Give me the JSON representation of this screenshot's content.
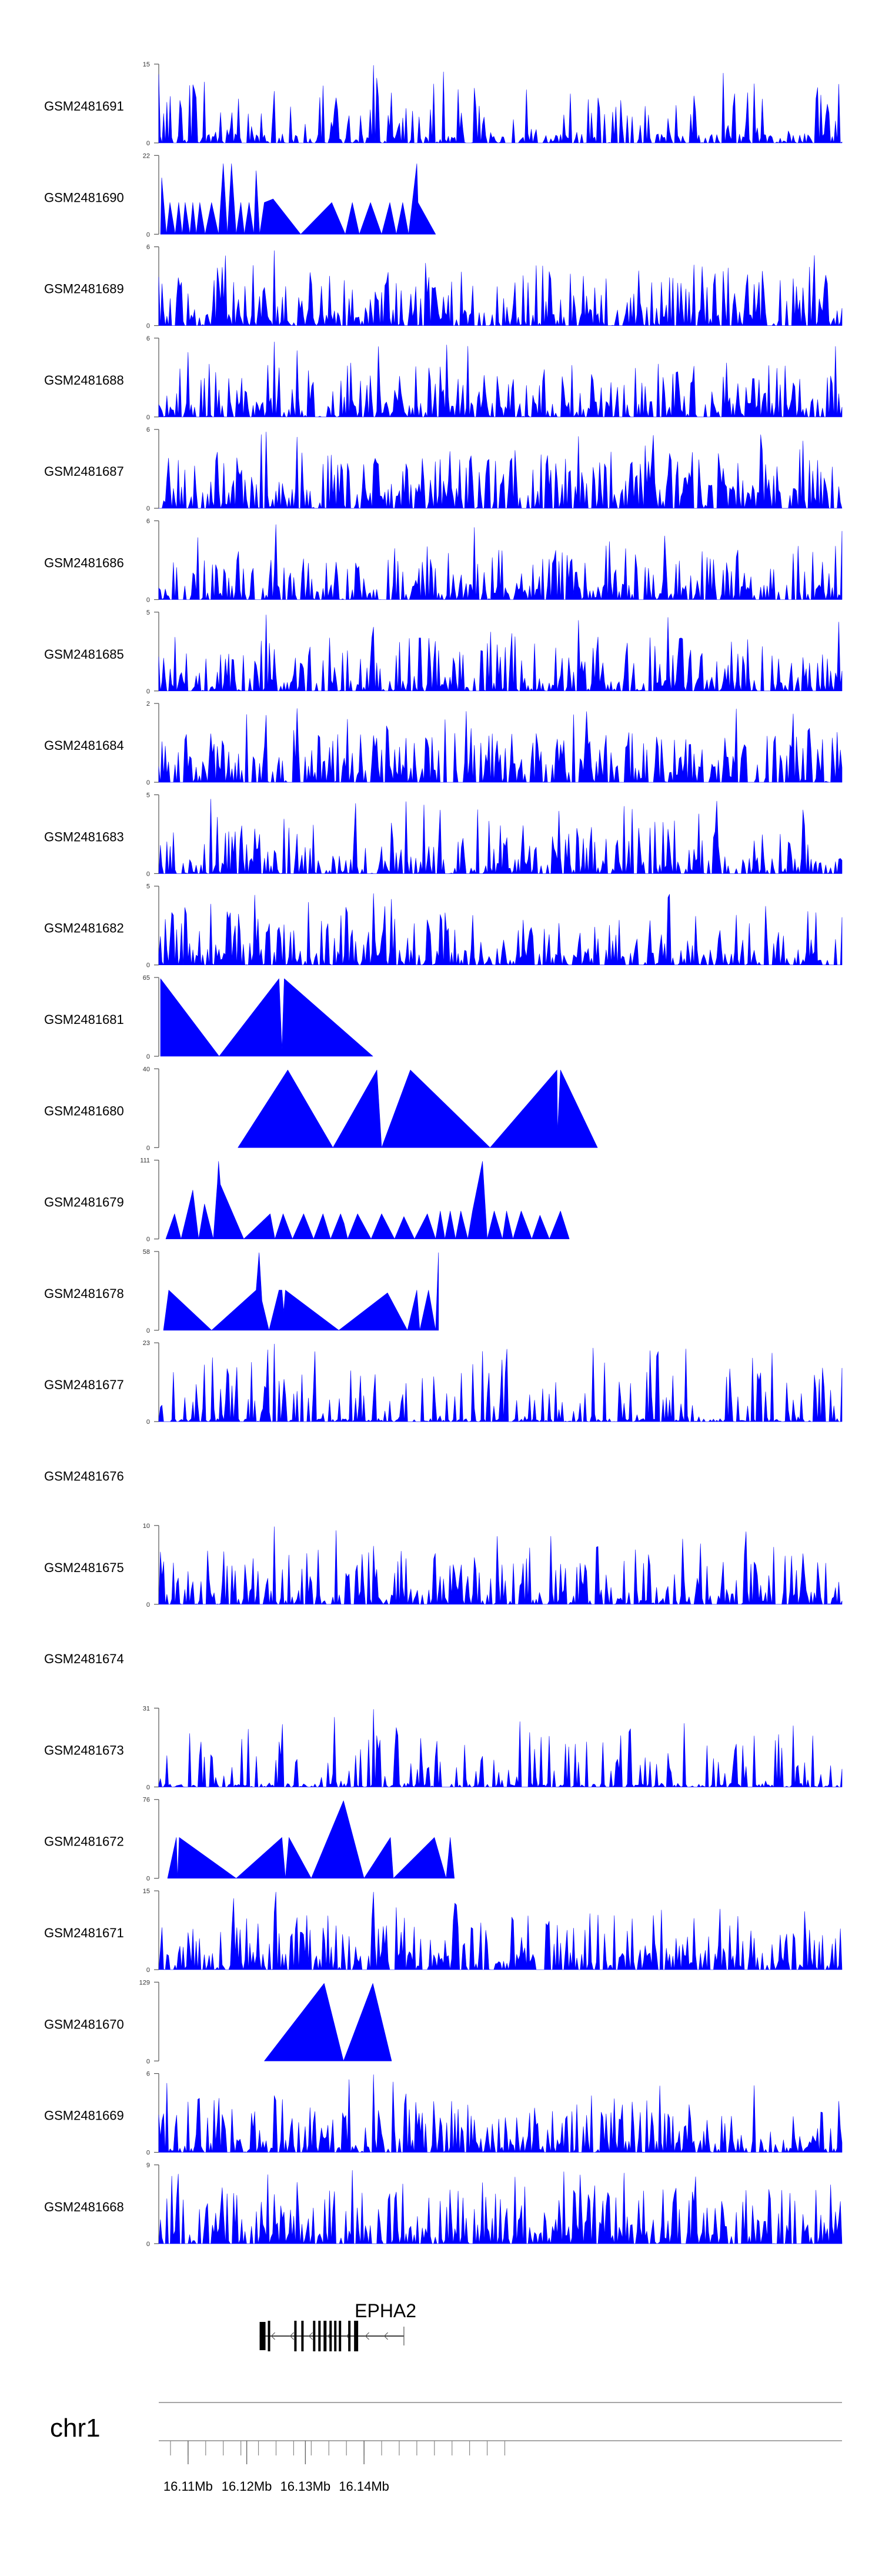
{
  "chart_data": {
    "type": "area",
    "genome": {
      "chromosome": "chr1",
      "start": 16.105,
      "end": 16.2215,
      "unit": "Mb",
      "tick_labels": [
        "16.11Mb",
        "16.12Mb",
        "16.13Mb",
        "16.14Mb"
      ],
      "tick_values": [
        16.11,
        16.12,
        16.13,
        16.14
      ],
      "minor_ticks": [
        16.107,
        16.11,
        16.113,
        16.116,
        16.119,
        16.122,
        16.125,
        16.128,
        16.131,
        16.134,
        16.137,
        16.14,
        16.143,
        16.146,
        16.149,
        16.152,
        16.155,
        16.158,
        16.161,
        16.164
      ]
    },
    "gene": {
      "name": "EPHA2",
      "strand": "-",
      "tx_start": 16.1222,
      "tx_end": 16.1468,
      "exons": [
        [
          16.1222,
          16.1232
        ],
        [
          16.1236,
          16.1239
        ],
        [
          16.1281,
          16.1283
        ],
        [
          16.1293,
          16.1295
        ],
        [
          16.1313,
          16.1316
        ],
        [
          16.1322,
          16.1325
        ],
        [
          16.1331,
          16.1336
        ],
        [
          16.1341,
          16.1343
        ],
        [
          16.1349,
          16.1351
        ],
        [
          16.1357,
          16.1359
        ],
        [
          16.1373,
          16.1375
        ],
        [
          16.1383,
          16.139
        ]
      ]
    },
    "series": [
      {
        "name": "GSM2481691",
        "ymax": 15,
        "ymin": 0,
        "style": "dense",
        "seed": 11,
        "base": 0.12,
        "peaks": [
          [
            16.1415,
            15
          ],
          [
            16.1247,
            10
          ],
          [
            16.1345,
            4
          ]
        ]
      },
      {
        "name": "GSM2481690",
        "ymax": 22,
        "ymin": 0,
        "style": "sparse",
        "seed": 12,
        "points": [
          [
            16.1053,
            0
          ],
          [
            16.1055,
            16
          ],
          [
            16.1063,
            0
          ],
          [
            16.1069,
            9
          ],
          [
            16.1078,
            0
          ],
          [
            16.1084,
            9
          ],
          [
            16.109,
            0
          ],
          [
            16.1095,
            9
          ],
          [
            16.1103,
            0
          ],
          [
            16.1108,
            9
          ],
          [
            16.1114,
            0
          ],
          [
            16.112,
            9
          ],
          [
            16.1129,
            0
          ],
          [
            16.114,
            9
          ],
          [
            16.1152,
            0
          ],
          [
            16.116,
            20
          ],
          [
            16.1167,
            0
          ],
          [
            16.1174,
            20
          ],
          [
            16.1182,
            0
          ],
          [
            16.119,
            9
          ],
          [
            16.1196,
            0
          ],
          [
            16.1204,
            9
          ],
          [
            16.1212,
            0
          ],
          [
            16.1216,
            18
          ],
          [
            16.1222,
            0
          ],
          [
            16.123,
            9
          ],
          [
            16.1245,
            10
          ],
          [
            16.1292,
            0
          ],
          [
            16.1345,
            9
          ],
          [
            16.1368,
            0
          ],
          [
            16.138,
            9
          ],
          [
            16.1392,
            0
          ],
          [
            16.1411,
            9
          ],
          [
            16.143,
            0
          ],
          [
            16.1444,
            9
          ],
          [
            16.1455,
            0
          ],
          [
            16.1466,
            9
          ],
          [
            16.1476,
            0
          ],
          [
            16.149,
            20
          ],
          [
            16.1492,
            9
          ],
          [
            16.1522,
            0
          ]
        ]
      },
      {
        "name": "GSM2481689",
        "ymax": 6,
        "ymin": 0,
        "style": "dense",
        "seed": 13,
        "base": 0.22,
        "peaks": [
          [
            16.1247,
            5.8
          ],
          [
            16.1163,
            5.4
          ]
        ]
      },
      {
        "name": "GSM2481688",
        "ymax": 6,
        "ymin": 0,
        "style": "dense",
        "seed": 14,
        "base": 0.2,
        "peaks": [
          [
            16.1247,
            5.8
          ],
          [
            16.1236,
            4
          ],
          [
            16.1255,
            3.8
          ]
        ]
      },
      {
        "name": "GSM2481687",
        "ymax": 6,
        "ymin": 0,
        "style": "dense",
        "seed": 15,
        "base": 0.3,
        "peaks": [
          [
            16.1233,
            5.9
          ],
          [
            16.1287,
            5.5
          ]
        ]
      },
      {
        "name": "GSM2481686",
        "ymax": 6,
        "ymin": 0,
        "style": "dense",
        "seed": 16,
        "base": 0.2,
        "peaks": [
          [
            16.1251,
            5.8
          ],
          [
            16.1116,
            4.8
          ]
        ]
      },
      {
        "name": "GSM2481685",
        "ymax": 5,
        "ymin": 0,
        "style": "dense",
        "seed": 17,
        "base": 0.18,
        "peaks": [
          [
            16.1233,
            4.9
          ]
        ]
      },
      {
        "name": "GSM2481684",
        "ymax": 2,
        "ymin": 0,
        "style": "dense",
        "seed": 18,
        "base": 0.28,
        "peaks": [
          [
            16.1287,
            1.9
          ]
        ]
      },
      {
        "name": "GSM2481683",
        "ymax": 5,
        "ymin": 0,
        "style": "dense",
        "seed": 19,
        "base": 0.2,
        "peaks": [
          [
            16.1139,
            4.8
          ]
        ]
      },
      {
        "name": "GSM2481682",
        "ymax": 5,
        "ymin": 0,
        "style": "dense",
        "seed": 20,
        "base": 0.2,
        "peaks": [
          [
            16.1415,
            4.6
          ],
          [
            16.1213,
            4.5
          ]
        ]
      },
      {
        "name": "GSM2481681",
        "ymax": 65,
        "ymin": 0,
        "style": "sparse",
        "seed": 21,
        "points": [
          [
            16.1053,
            0
          ],
          [
            16.1053,
            65
          ],
          [
            16.1153,
            0
          ],
          [
            16.1255,
            65
          ],
          [
            16.126,
            6
          ],
          [
            16.1264,
            65
          ],
          [
            16.1415,
            0
          ]
        ]
      },
      {
        "name": "GSM2481680",
        "ymax": 40,
        "ymin": 0,
        "style": "sparse",
        "seed": 22,
        "points": [
          [
            16.1185,
            0
          ],
          [
            16.127,
            40
          ],
          [
            16.1347,
            0
          ],
          [
            16.1422,
            40
          ],
          [
            16.143,
            0
          ],
          [
            16.1479,
            40
          ],
          [
            16.1615,
            0
          ],
          [
            16.1729,
            40
          ],
          [
            16.173,
            8
          ],
          [
            16.1735,
            40
          ],
          [
            16.1798,
            0
          ]
        ]
      },
      {
        "name": "GSM2481679",
        "ymax": 111,
        "ymin": 0,
        "style": "sparse",
        "seed": 23,
        "points": [
          [
            16.1062,
            0
          ],
          [
            16.1077,
            36
          ],
          [
            16.1088,
            0
          ],
          [
            16.1108,
            70
          ],
          [
            16.1118,
            0
          ],
          [
            16.1128,
            50
          ],
          [
            16.1143,
            0
          ],
          [
            16.115,
            80
          ],
          [
            16.1152,
            111
          ],
          [
            16.1155,
            78
          ],
          [
            16.1195,
            0
          ],
          [
            16.124,
            36
          ],
          [
            16.1248,
            0
          ],
          [
            16.1262,
            36
          ],
          [
            16.1278,
            0
          ],
          [
            16.1297,
            36
          ],
          [
            16.1314,
            0
          ],
          [
            16.133,
            36
          ],
          [
            16.1343,
            0
          ],
          [
            16.136,
            36
          ],
          [
            16.1366,
            22
          ],
          [
            16.1372,
            0
          ],
          [
            16.1389,
            36
          ],
          [
            16.1412,
            0
          ],
          [
            16.143,
            36
          ],
          [
            16.1452,
            0
          ],
          [
            16.1468,
            32
          ],
          [
            16.1486,
            0
          ],
          [
            16.1508,
            36
          ],
          [
            16.1522,
            0
          ],
          [
            16.153,
            40
          ],
          [
            16.1538,
            0
          ],
          [
            16.1547,
            40
          ],
          [
            16.1556,
            0
          ],
          [
            16.1565,
            40
          ],
          [
            16.1577,
            0
          ],
          [
            16.1585,
            40
          ],
          [
            16.1602,
            111
          ],
          [
            16.161,
            0
          ],
          [
            16.1622,
            40
          ],
          [
            16.1636,
            0
          ],
          [
            16.1643,
            40
          ],
          [
            16.1654,
            0
          ],
          [
            16.1668,
            40
          ],
          [
            16.1686,
            0
          ],
          [
            16.17,
            34
          ],
          [
            16.1716,
            0
          ],
          [
            16.1735,
            40
          ],
          [
            16.175,
            0
          ]
        ]
      },
      {
        "name": "GSM2481678",
        "ymax": 58,
        "ymin": 0,
        "style": "sparse",
        "seed": 24,
        "points": [
          [
            16.1058,
            0
          ],
          [
            16.1067,
            30
          ],
          [
            16.114,
            0
          ],
          [
            16.1216,
            30
          ],
          [
            16.1221,
            58
          ],
          [
            16.1226,
            22
          ],
          [
            16.1238,
            0
          ],
          [
            16.1255,
            30
          ],
          [
            16.126,
            30
          ],
          [
            16.1263,
            14
          ],
          [
            16.1266,
            30
          ],
          [
            16.1357,
            0
          ],
          [
            16.144,
            28
          ],
          [
            16.1474,
            0
          ],
          [
            16.149,
            30
          ],
          [
            16.1495,
            0
          ],
          [
            16.151,
            30
          ],
          [
            16.1522,
            0
          ],
          [
            16.1527,
            58
          ],
          [
            16.1527,
            0
          ]
        ]
      },
      {
        "name": "GSM2481677",
        "ymax": 23,
        "ymin": 0,
        "style": "dense",
        "seed": 25,
        "base": 0.04,
        "peaks": [
          [
            16.1247,
            23
          ],
          [
            16.1254,
            12
          ],
          [
            16.1262,
            6
          ],
          [
            16.1285,
            9
          ],
          [
            16.1415,
            8
          ],
          [
            16.1116,
            5
          ],
          [
            16.1163,
            6
          ]
        ]
      },
      {
        "name": "GSM2481676",
        "ymax": null,
        "ymin": null,
        "style": "empty",
        "seed": 26
      },
      {
        "name": "GSM2481675",
        "ymax": 10,
        "ymin": 0,
        "style": "dense",
        "seed": 27,
        "base": 0.2,
        "peaks": [
          [
            16.1247,
            10
          ],
          [
            16.1352,
            9.5
          ],
          [
            16.1415,
            7.5
          ],
          [
            16.1321,
            7
          ]
        ]
      },
      {
        "name": "GSM2481674",
        "ymax": null,
        "ymin": null,
        "style": "empty",
        "seed": 28
      },
      {
        "name": "GSM2481673",
        "ymax": 31,
        "ymin": 0,
        "style": "dense",
        "seed": 29,
        "base": 0.05,
        "peaks": [
          [
            16.1415,
            31
          ],
          [
            16.1262,
            25
          ],
          [
            16.1254,
            18
          ],
          [
            16.1123,
            18
          ],
          [
            16.1127,
            12
          ]
        ]
      },
      {
        "name": "GSM2481672",
        "ymax": 76,
        "ymin": 0,
        "style": "sparse",
        "seed": 30,
        "points": [
          [
            16.1065,
            0
          ],
          [
            16.108,
            40
          ],
          [
            16.1082,
            0
          ],
          [
            16.1085,
            40
          ],
          [
            16.1182,
            0
          ],
          [
            16.126,
            40
          ],
          [
            16.1266,
            0
          ],
          [
            16.1272,
            40
          ],
          [
            16.131,
            0
          ],
          [
            16.1365,
            76
          ],
          [
            16.14,
            0
          ],
          [
            16.1445,
            40
          ],
          [
            16.145,
            0
          ],
          [
            16.152,
            40
          ],
          [
            16.154,
            0
          ],
          [
            16.1547,
            40
          ],
          [
            16.1554,
            0
          ]
        ]
      },
      {
        "name": "GSM2481671",
        "ymax": 15,
        "ymin": 0,
        "style": "dense",
        "seed": 31,
        "base": 0.22,
        "peaks": [
          [
            16.1251,
            15
          ],
          [
            16.1415,
            15
          ],
          [
            16.1455,
            12
          ]
        ]
      },
      {
        "name": "GSM2481670",
        "ymax": 129,
        "ymin": 0,
        "style": "sparse",
        "seed": 32,
        "points": [
          [
            16.123,
            0
          ],
          [
            16.1332,
            129
          ],
          [
            16.1365,
            0
          ],
          [
            16.1415,
            129
          ],
          [
            16.1447,
            0
          ]
        ]
      },
      {
        "name": "GSM2481669",
        "ymax": 6,
        "ymin": 0,
        "style": "dense",
        "seed": 33,
        "base": 0.18,
        "peaks": [
          [
            16.1415,
            6
          ]
        ]
      },
      {
        "name": "GSM2481668",
        "ymax": 9,
        "ymin": 0,
        "style": "dense",
        "seed": 34,
        "base": 0.25,
        "peaks": [
          [
            16.1379,
            8.5
          ],
          [
            16.1236,
            8
          ]
        ]
      }
    ],
    "fill_color": "#0000ff",
    "axis_color": "#888888",
    "gene_color": "#000000"
  }
}
